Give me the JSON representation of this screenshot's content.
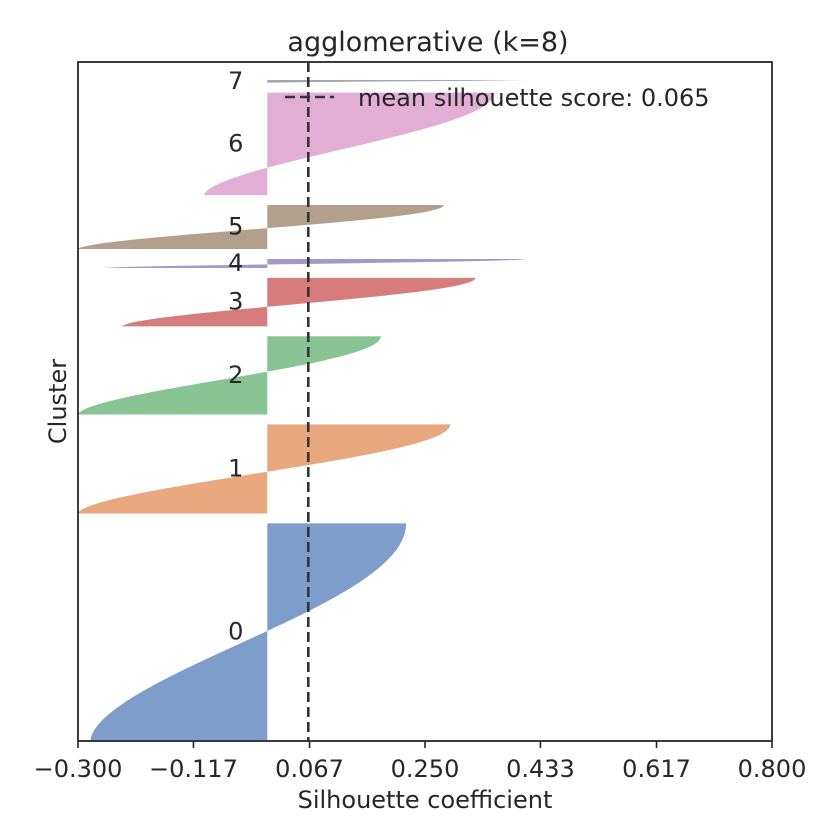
{
  "chart_data": {
    "type": "area",
    "title": "agglomerative (k=8)",
    "xlabel": "Silhouette coefficient",
    "ylabel": "Cluster",
    "xlim": [
      -0.3,
      0.8
    ],
    "x_ticks": [
      "−0.300",
      "−0.117",
      "0.067",
      "0.250",
      "0.433",
      "0.617",
      "0.800"
    ],
    "x_tick_values": [
      -0.3,
      -0.117,
      0.067,
      0.25,
      0.433,
      0.617,
      0.8
    ],
    "grid": false,
    "legend_position": "top-right",
    "mean_line": {
      "value": 0.065,
      "label": "mean silhouette score: 0.065"
    },
    "clusters": [
      {
        "label": "0",
        "color": "#8172b2",
        "size": 242,
        "min": -0.28,
        "max": 0.22
      },
      {
        "label": "1",
        "color": "#e8a77e",
        "size": 100,
        "min": -0.3,
        "max": 0.29
      },
      {
        "label": "2",
        "color": "#88c393",
        "size": 88,
        "min": -0.3,
        "max": 0.18
      },
      {
        "label": "3",
        "color": "#d67c7c",
        "size": 55,
        "min": -0.23,
        "max": 0.33
      },
      {
        "label": "4",
        "color": "#a597c8",
        "size": 11,
        "min": -0.26,
        "max": 0.41
      },
      {
        "label": "5",
        "color": "#b29f8c",
        "size": 50,
        "min": -0.3,
        "max": 0.28
      },
      {
        "label": "6",
        "color": "#e3aed5",
        "size": 115,
        "min": -0.1,
        "max": 0.36
      },
      {
        "label": "7",
        "color": "#a6a6a6",
        "size": 4,
        "min": 0.0,
        "max": 0.41
      }
    ],
    "colors": [
      "#7f9dcb",
      "#e8a77e",
      "#88c393",
      "#d67c7c",
      "#a597c8",
      "#b29f8c",
      "#e3aed5",
      "#a6a6a6"
    ]
  }
}
